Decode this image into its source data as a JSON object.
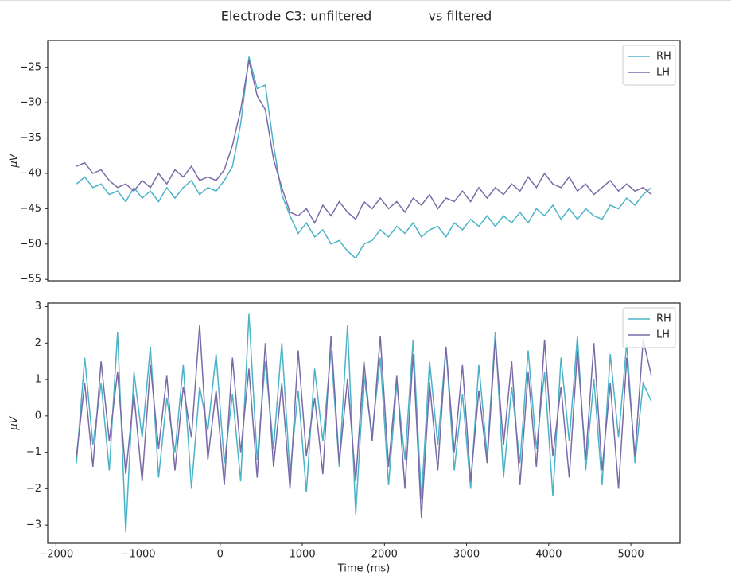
{
  "chart_data": [
    {
      "type": "line",
      "title": "Electrode C3: unfiltered              vs filtered",
      "ylabel": "μV",
      "x": [
        -1750,
        -1650,
        -1550,
        -1450,
        -1350,
        -1250,
        -1150,
        -1050,
        -950,
        -850,
        -750,
        -650,
        -550,
        -450,
        -350,
        -250,
        -150,
        -50,
        50,
        150,
        250,
        350,
        450,
        550,
        650,
        750,
        850,
        950,
        1050,
        1150,
        1250,
        1350,
        1450,
        1550,
        1650,
        1750,
        1850,
        1950,
        2050,
        2150,
        2250,
        2350,
        2450,
        2550,
        2650,
        2750,
        2850,
        2950,
        3050,
        3150,
        3250,
        3350,
        3450,
        3550,
        3650,
        3750,
        3850,
        3950,
        4050,
        4150,
        4250,
        4350,
        4450,
        4550,
        4650,
        4750,
        4850,
        4950,
        5050,
        5150,
        5250
      ],
      "series": [
        {
          "name": "RH",
          "color": "#4bb3c8",
          "values": [
            -41.5,
            -40.5,
            -42,
            -41.5,
            -43,
            -42.5,
            -44,
            -42,
            -43.5,
            -42.5,
            -44,
            -42,
            -43.5,
            -42,
            -41,
            -43,
            -42,
            -42.5,
            -41,
            -39,
            -33,
            -23.5,
            -28,
            -27.5,
            -36,
            -43,
            -46,
            -48.5,
            -47,
            -49,
            -48,
            -50,
            -49.5,
            -51,
            -52,
            -50,
            -49.5,
            -48,
            -49,
            -47.5,
            -48.5,
            -47,
            -49,
            -48,
            -47.5,
            -49,
            -47,
            -48,
            -46.5,
            -47.5,
            -46,
            -47.5,
            -46,
            -47,
            -45.5,
            -47,
            -45,
            -46,
            -44.5,
            -46.5,
            -45,
            -46.5,
            -45,
            -46,
            -46.5,
            -44.5,
            -45,
            -43.5,
            -44.5,
            -43,
            -42
          ]
        },
        {
          "name": "LH",
          "color": "#7b6aa8",
          "values": [
            -39,
            -38.5,
            -40,
            -39.5,
            -41,
            -42,
            -41.5,
            -42.5,
            -41,
            -42,
            -40,
            -41.5,
            -39.5,
            -40.5,
            -39,
            -41,
            -40.5,
            -41,
            -39.5,
            -36,
            -31,
            -24,
            -29,
            -31,
            -38,
            -42,
            -45.5,
            -46,
            -45,
            -47,
            -44.5,
            -46,
            -44,
            -45.5,
            -46.5,
            -44,
            -45,
            -43.5,
            -45,
            -44,
            -45.5,
            -43.5,
            -44.5,
            -43,
            -45,
            -43.5,
            -44,
            -42.5,
            -44,
            -42,
            -43.5,
            -42,
            -43,
            -41.5,
            -42.5,
            -40.5,
            -42,
            -40,
            -41.5,
            -42,
            -40.5,
            -42.5,
            -41.5,
            -43,
            -42,
            -41,
            -42.5,
            -41.5,
            -42.5,
            -42,
            -43
          ]
        }
      ],
      "ylim": [
        -55.2,
        -21.2
      ],
      "xlim": [
        -2100,
        5600
      ],
      "yticks": [
        {
          "value": -25,
          "label": "−25"
        },
        {
          "value": -30,
          "label": "−30"
        },
        {
          "value": -35,
          "label": "−35"
        },
        {
          "value": -40,
          "label": "−40"
        },
        {
          "value": -45,
          "label": "−45"
        },
        {
          "value": -50,
          "label": "−50"
        },
        {
          "value": -55,
          "label": "−55"
        }
      ],
      "legend": "upper right"
    },
    {
      "type": "line",
      "ylabel": "μV",
      "xlabel": "Time (ms)",
      "x": [
        -1750,
        -1650,
        -1550,
        -1450,
        -1350,
        -1250,
        -1150,
        -1050,
        -950,
        -850,
        -750,
        -650,
        -550,
        -450,
        -350,
        -250,
        -150,
        -50,
        50,
        150,
        250,
        350,
        450,
        550,
        650,
        750,
        850,
        950,
        1050,
        1150,
        1250,
        1350,
        1450,
        1550,
        1650,
        1750,
        1850,
        1950,
        2050,
        2150,
        2250,
        2350,
        2450,
        2550,
        2650,
        2750,
        2850,
        2950,
        3050,
        3150,
        3250,
        3350,
        3450,
        3550,
        3650,
        3750,
        3850,
        3950,
        4050,
        4150,
        4250,
        4350,
        4450,
        4550,
        4650,
        4750,
        4850,
        4950,
        5050,
        5150,
        5250
      ],
      "series": [
        {
          "name": "RH",
          "color": "#4bb3c8",
          "values": [
            -1.3,
            1.6,
            -0.8,
            0.9,
            -1.5,
            2.3,
            -3.2,
            1.2,
            -0.6,
            1.9,
            -1.7,
            0.5,
            -1.0,
            1.4,
            -2.0,
            0.8,
            -0.4,
            1.7,
            -1.3,
            0.6,
            -1.8,
            2.8,
            -1.2,
            1.5,
            -0.9,
            2.0,
            -1.6,
            0.7,
            -2.1,
            1.3,
            -0.7,
            1.8,
            -1.4,
            2.5,
            -2.7,
            1.1,
            -0.5,
            1.6,
            -1.9,
            0.9,
            -1.2,
            2.1,
            -2.3,
            1.5,
            -0.8,
            1.9,
            -1.5,
            0.6,
            -2.0,
            1.4,
            -1.1,
            2.3,
            -1.7,
            0.8,
            -1.3,
            1.8,
            -0.9,
            1.2,
            -2.2,
            1.6,
            -0.7,
            2.2,
            -1.5,
            1.0,
            -1.9,
            1.7,
            -0.6,
            2.0,
            -1.3,
            0.9,
            0.4
          ]
        },
        {
          "name": "LH",
          "color": "#7b6aa8",
          "values": [
            -1.1,
            0.9,
            -1.4,
            1.5,
            -0.7,
            1.2,
            -1.6,
            0.6,
            -1.8,
            1.4,
            -0.9,
            1.1,
            -1.5,
            0.8,
            -0.6,
            2.5,
            -1.2,
            0.7,
            -1.9,
            1.6,
            -1.0,
            1.3,
            -1.7,
            2.0,
            -1.4,
            0.9,
            -2.0,
            1.8,
            -1.1,
            0.5,
            -1.6,
            2.2,
            -1.3,
            1.0,
            -1.8,
            1.5,
            -0.7,
            2.2,
            -1.4,
            1.1,
            -2.0,
            1.7,
            -2.8,
            0.9,
            -1.5,
            1.9,
            -1.0,
            1.4,
            -1.8,
            0.7,
            -1.3,
            2.1,
            -0.8,
            1.5,
            -1.9,
            1.2,
            -1.4,
            2.1,
            -1.1,
            0.8,
            -1.7,
            1.8,
            -1.2,
            2.0,
            -1.5,
            0.9,
            -2.0,
            1.6,
            -1.1,
            2.1,
            1.1
          ]
        }
      ],
      "ylim": [
        -3.5,
        3.1
      ],
      "xlim": [
        -2100,
        5600
      ],
      "yticks": [
        3,
        2,
        1,
        0,
        {
          "value": -1,
          "label": "−1"
        },
        {
          "value": -2,
          "label": "−2"
        },
        {
          "value": -3,
          "label": "−3"
        }
      ],
      "xticks": [
        {
          "value": -2000,
          "label": "−2000"
        },
        {
          "value": -1000,
          "label": "−1000"
        },
        0,
        1000,
        2000,
        3000,
        4000,
        5000
      ],
      "legend": "upper right"
    }
  ]
}
